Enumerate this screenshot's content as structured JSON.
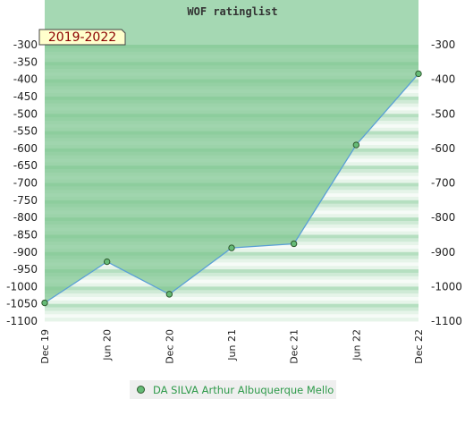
{
  "chart_data": {
    "type": "line",
    "title": "WOF ratinglist",
    "badge": "2019-2022",
    "categories": [
      "Dec 19",
      "Jun 20",
      "Dec 20",
      "Jun 21",
      "Dec 21",
      "Jun 22",
      "Dec 22"
    ],
    "series": [
      {
        "name": "DA SILVA Arthur Albuquerque Mello",
        "values": [
          -1047,
          -928,
          -1022,
          -888,
          -876,
          -590,
          -384
        ]
      }
    ],
    "ylim": [
      -1100,
      -300
    ],
    "left_ticks": [
      -300,
      -350,
      -400,
      -450,
      -500,
      -550,
      -600,
      -650,
      -700,
      -750,
      -800,
      -850,
      -900,
      -950,
      -1000,
      -1050,
      -1100
    ],
    "right_ticks": [
      -300,
      -400,
      -500,
      -600,
      -700,
      -800,
      -900,
      -1000,
      -1100
    ],
    "grid": "banded",
    "legend_position": "bottom",
    "colors": {
      "fill": "#7cc48f",
      "line": "#5a9fd6",
      "marker": "#66bb77",
      "marker_stroke": "#2e5a2e",
      "band_dark": "#b5dfc0",
      "band_mid": "#cfeAd6",
      "band_light": "#e6f4e9",
      "band_white": "#f6fbf7",
      "title_bar": "#a5d8b3",
      "badge_bg": "#ffffcc"
    }
  }
}
